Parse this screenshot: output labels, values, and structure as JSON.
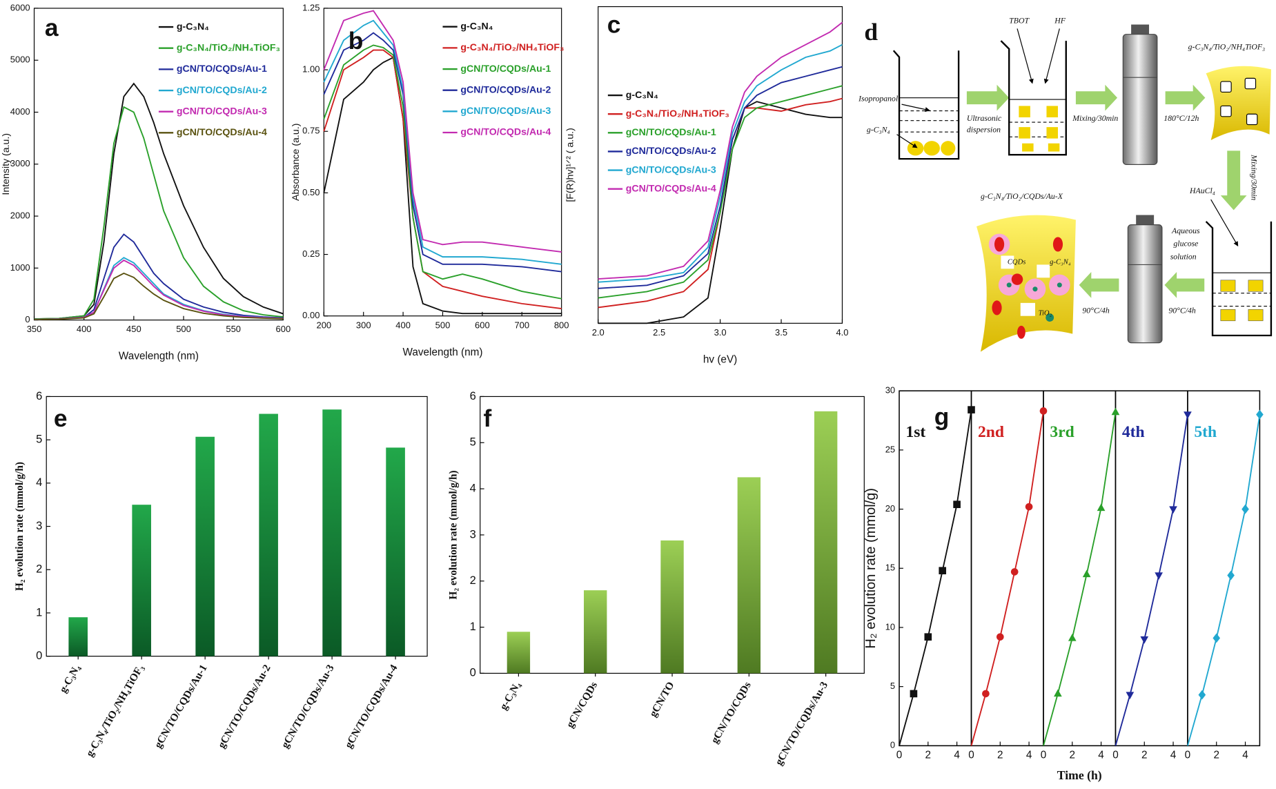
{
  "chart_data": [
    {
      "type": "line",
      "title": "a",
      "x_label": "Wavelength (nm)",
      "y_label": "Intensity (a.u.)",
      "x": [
        350,
        375,
        400,
        410,
        420,
        430,
        440,
        450,
        460,
        470,
        480,
        500,
        520,
        540,
        560,
        580,
        600
      ],
      "xlim": [
        350,
        600
      ],
      "ylim": [
        0,
        6000
      ],
      "xticks": [
        350,
        400,
        450,
        500,
        550,
        600
      ],
      "yticks": [
        0,
        1000,
        2000,
        3000,
        4000,
        5000,
        6000
      ],
      "legend": "upper right",
      "series": [
        {
          "name": "g-C₃N₄",
          "color": "#111111",
          "values": [
            20,
            30,
            80,
            300,
            1500,
            3200,
            4300,
            4550,
            4300,
            3800,
            3200,
            2200,
            1400,
            800,
            450,
            250,
            120
          ]
        },
        {
          "name": "g-C₃N₄/TiO₂/NH₄TiOF₃",
          "color": "#2aa02a",
          "values": [
            20,
            30,
            80,
            400,
            1800,
            3400,
            4100,
            4000,
            3500,
            2800,
            2100,
            1200,
            650,
            350,
            180,
            100,
            60
          ]
        },
        {
          "name": "gCN/TO/CQDs/Au-1",
          "color": "#1f2a9a",
          "values": [
            10,
            20,
            50,
            200,
            800,
            1400,
            1650,
            1500,
            1200,
            900,
            700,
            400,
            250,
            150,
            90,
            60,
            40
          ]
        },
        {
          "name": "gCN/TO/CQDs/Au-2",
          "color": "#21a8d0",
          "values": [
            10,
            20,
            50,
            150,
            600,
            1050,
            1200,
            1100,
            900,
            700,
            500,
            300,
            180,
            110,
            70,
            50,
            30
          ]
        },
        {
          "name": "gCN/TO/CQDs/Au-3",
          "color": "#c22ab0",
          "values": [
            10,
            20,
            50,
            150,
            580,
            1000,
            1150,
            1050,
            850,
            650,
            480,
            280,
            170,
            100,
            65,
            45,
            30
          ]
        },
        {
          "name": "gCN/TO/CQDs/Au-4",
          "color": "#5a5210",
          "values": [
            10,
            15,
            40,
            120,
            450,
            800,
            900,
            820,
            650,
            500,
            380,
            220,
            130,
            80,
            50,
            35,
            25
          ]
        }
      ]
    },
    {
      "type": "line",
      "title": "b",
      "x_label": "Wavelength (nm)",
      "y_label": "Absorbance (a.u.)",
      "x": [
        200,
        250,
        300,
        325,
        350,
        375,
        400,
        425,
        450,
        500,
        550,
        600,
        700,
        800
      ],
      "xlim": [
        200,
        800
      ],
      "ylim": [
        0,
        1.25
      ],
      "xticks": [
        200,
        300,
        400,
        500,
        600,
        700,
        800
      ],
      "yticks": [
        {
          "value": 0,
          "label": "0.00"
        },
        0.25,
        {
          "value": 0.5,
          "label": "0.50"
        },
        0.75,
        {
          "value": 1,
          "label": "1.00"
        },
        1.25
      ],
      "legend": "upper right",
      "series": [
        {
          "name": "g-C₃N₄",
          "color": "#111111",
          "values": [
            0.5,
            0.88,
            0.95,
            1.0,
            1.03,
            1.05,
            0.8,
            0.2,
            0.05,
            0.02,
            0.01,
            0.01,
            0.01,
            0.01
          ]
        },
        {
          "name": "g-C₃N₄/TiO₂/NH₄TiOF₃",
          "color": "#d02020",
          "values": [
            0.75,
            1.0,
            1.05,
            1.08,
            1.08,
            1.05,
            0.8,
            0.4,
            0.18,
            0.12,
            0.1,
            0.08,
            0.05,
            0.03
          ]
        },
        {
          "name": "gCN/TO/CQDs/Au-1",
          "color": "#2aa02a",
          "values": [
            0.8,
            1.02,
            1.08,
            1.1,
            1.09,
            1.06,
            0.85,
            0.4,
            0.18,
            0.15,
            0.17,
            0.15,
            0.1,
            0.07
          ]
        },
        {
          "name": "gCN/TO/CQDs/Au-2",
          "color": "#1f2a9a",
          "values": [
            0.9,
            1.08,
            1.12,
            1.15,
            1.12,
            1.08,
            0.9,
            0.45,
            0.25,
            0.21,
            0.21,
            0.21,
            0.2,
            0.18
          ]
        },
        {
          "name": "gCN/TO/CQDs/Au-3",
          "color": "#21a8d0",
          "values": [
            0.95,
            1.12,
            1.18,
            1.2,
            1.15,
            1.1,
            0.92,
            0.48,
            0.28,
            0.24,
            0.24,
            0.24,
            0.23,
            0.21
          ]
        },
        {
          "name": "gCN/TO/CQDs/Au-4",
          "color": "#c22ab0",
          "values": [
            1.0,
            1.2,
            1.23,
            1.24,
            1.18,
            1.12,
            0.95,
            0.5,
            0.31,
            0.29,
            0.3,
            0.3,
            0.28,
            0.26
          ]
        }
      ]
    },
    {
      "type": "line",
      "title": "c",
      "x_label": "hv (eV)",
      "y_label": "[F(R)hv]¹ᐟ² ( a.u.)",
      "x": [
        2.0,
        2.4,
        2.7,
        2.9,
        3.0,
        3.1,
        3.2,
        3.3,
        3.5,
        3.7,
        3.9,
        4.0
      ],
      "xlim": [
        2,
        4
      ],
      "ylim": [
        0,
        1
      ],
      "xticks": [
        {
          "value": 2,
          "label": "2.0"
        },
        2.5,
        {
          "value": 3,
          "label": "3.0"
        },
        3.5,
        {
          "value": 4,
          "label": "4.0"
        }
      ],
      "legend": "center left",
      "series": [
        {
          "name": "g-C₃N₄",
          "color": "#111111",
          "values": [
            0.0,
            0.0,
            0.02,
            0.08,
            0.3,
            0.55,
            0.68,
            0.7,
            0.68,
            0.66,
            0.65,
            0.65
          ]
        },
        {
          "name": "g-C₃N₄/TiO₂/NH₄TiOF₃",
          "color": "#d02020",
          "values": [
            0.05,
            0.07,
            0.1,
            0.17,
            0.35,
            0.58,
            0.68,
            0.68,
            0.67,
            0.69,
            0.7,
            0.71
          ]
        },
        {
          "name": "gCN/TO/CQDs/Au-1",
          "color": "#2aa02a",
          "values": [
            0.08,
            0.1,
            0.13,
            0.2,
            0.35,
            0.55,
            0.65,
            0.68,
            0.7,
            0.72,
            0.74,
            0.75
          ]
        },
        {
          "name": "gCN/TO/CQDs/Au-2",
          "color": "#1f2a9a",
          "values": [
            0.11,
            0.12,
            0.15,
            0.22,
            0.37,
            0.58,
            0.68,
            0.72,
            0.76,
            0.78,
            0.8,
            0.81
          ]
        },
        {
          "name": "gCN/TO/CQDs/Au-3",
          "color": "#21a8d0",
          "values": [
            0.13,
            0.14,
            0.16,
            0.24,
            0.4,
            0.6,
            0.7,
            0.75,
            0.8,
            0.84,
            0.86,
            0.88
          ]
        },
        {
          "name": "gCN/TO/CQDs/Au-4",
          "color": "#c22ab0",
          "values": [
            0.14,
            0.15,
            0.18,
            0.26,
            0.42,
            0.62,
            0.73,
            0.78,
            0.84,
            0.88,
            0.92,
            0.95
          ]
        }
      ]
    },
    {
      "type": "bar",
      "title": "e",
      "y_label": "H₂ evolution rate (mmol/g/h)",
      "categories": [
        "g-C₃N₄",
        "g-C₃N₄/TiO₂/NH₄TiOF₃",
        "gCN/TO/CQDs/Au-1",
        "gCN/TO/CQDs/Au-2",
        "gCN/TO/CQDs/Au-3",
        "gCN/TO/CQDs/Au-4"
      ],
      "values": [
        0.9,
        3.5,
        5.07,
        5.6,
        5.7,
        4.82
      ],
      "ylim": [
        0,
        6
      ],
      "yticks": [
        0,
        1,
        2,
        3,
        4,
        5,
        6
      ],
      "color": "#22a84a",
      "color_bottom": "#0b5a26"
    },
    {
      "type": "bar",
      "title": "f",
      "y_label": "H₂ evolution rate (mmol/g/h)",
      "categories": [
        "g-C₃N₄",
        "gCN/CQDs",
        "gCN/TO",
        "gCN/TO/CQDs",
        "gCN/TO/CQDs/Au-3"
      ],
      "values": [
        0.9,
        1.8,
        2.88,
        4.25,
        5.68
      ],
      "ylim": [
        0,
        6
      ],
      "yticks": [
        0,
        1,
        2,
        3,
        4,
        5,
        6
      ],
      "color": "#9ccf55",
      "color_bottom": "#4f7a22"
    },
    {
      "type": "line",
      "title": "g",
      "x_label": "Time (h)",
      "y_label": "H₂ evolution rate (mmol/g)",
      "small_multiples": true,
      "x": [
        0,
        1,
        2,
        3,
        4,
        5
      ],
      "xlim": [
        0,
        5
      ],
      "ylim": [
        0,
        30
      ],
      "xticks": [
        0,
        2,
        4
      ],
      "yticks": [
        0,
        5,
        10,
        15,
        20,
        25,
        30
      ],
      "series": [
        {
          "name": "1st",
          "color": "#111111",
          "marker": "square",
          "values": [
            0,
            4.4,
            9.2,
            14.8,
            20.4,
            28.4
          ]
        },
        {
          "name": "2nd",
          "color": "#d02020",
          "marker": "circle",
          "values": [
            0,
            4.4,
            9.2,
            14.7,
            20.2,
            28.3
          ]
        },
        {
          "name": "3rd",
          "color": "#2aa02a",
          "marker": "triangle-up",
          "values": [
            0,
            4.4,
            9.1,
            14.5,
            20.1,
            28.2
          ]
        },
        {
          "name": "4th",
          "color": "#1f2a9a",
          "marker": "triangle-down",
          "values": [
            0,
            4.3,
            9.0,
            14.4,
            20.0,
            28.0
          ]
        },
        {
          "name": "5th",
          "color": "#21a8d0",
          "marker": "diamond",
          "values": [
            0,
            4.3,
            9.1,
            14.4,
            20.0,
            28.0
          ]
        }
      ]
    }
  ],
  "diagram": {
    "label": "d",
    "tbot": "TBOT",
    "hf": "HF",
    "isopropanol": "Isopropanol",
    "gcn": "g-C₃N₄",
    "ultrasonic": "Ultrasonic",
    "dispersion": "dispersion",
    "mixing1": "Mixing/30min",
    "heat1": "180°C/12h",
    "product1": "g-C₃N₄/TiO₂/NH₄TiOF₃",
    "mixing2": "Mixing/30min",
    "haucl": "HAuCl₄",
    "aqueous": "Aqueous",
    "glucose": "glucose",
    "solution": "solution",
    "heat2": "90°C/4h",
    "heat3": "90°C/4h",
    "product2": "g-C₃N₄/TiO₂/CQDs/Au-X",
    "cqds": "CQDs",
    "gcn2": "g-C₃N₄",
    "tio2": "TiO₂"
  }
}
